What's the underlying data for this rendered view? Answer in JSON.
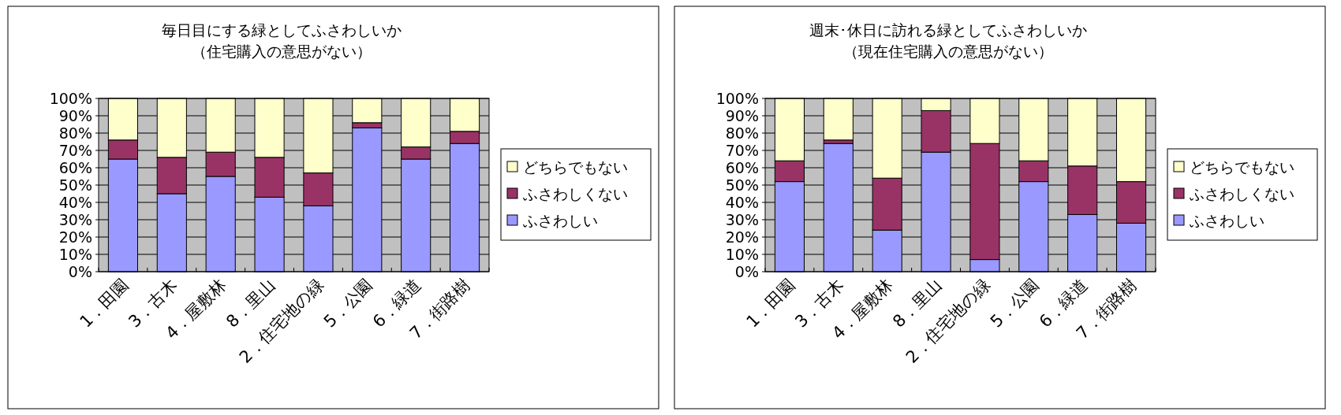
{
  "chart_data": [
    {
      "type": "bar",
      "title": "毎日目にする緑としてふさわしいか",
      "subtitle": "（住宅購入の意思がない）",
      "stacked": true,
      "legend": "right",
      "grid": "y",
      "categories": [
        "1．田園",
        "3．古木",
        "4．屋敷林",
        "8．里山",
        "2．住宅地の緑",
        "5．公園",
        "6．緑道",
        "7．街路樹"
      ],
      "ylim": [
        0,
        100
      ],
      "yticks": [
        {
          "value": 0,
          "label": "0%"
        },
        {
          "value": 10,
          "label": "10%"
        },
        {
          "value": 20,
          "label": "20%"
        },
        {
          "value": 30,
          "label": "30%"
        },
        {
          "value": 40,
          "label": "40%"
        },
        {
          "value": 50,
          "label": "50%"
        },
        {
          "value": 60,
          "label": "60%"
        },
        {
          "value": 70,
          "label": "70%"
        },
        {
          "value": 80,
          "label": "80%"
        },
        {
          "value": 90,
          "label": "90%"
        },
        {
          "value": 100,
          "label": "100%"
        }
      ],
      "series": [
        {
          "name": "ふさわしい",
          "color": "#9999ff",
          "values": [
            65,
            45,
            55,
            43,
            38,
            83,
            65,
            74
          ]
        },
        {
          "name": "ふさわしくない",
          "color": "#993366",
          "values": [
            11,
            21,
            14,
            23,
            19,
            3,
            7,
            7
          ]
        },
        {
          "name": "どちらでもない",
          "color": "#ffffcc",
          "values": [
            24,
            34,
            31,
            34,
            43,
            14,
            28,
            19
          ]
        }
      ]
    },
    {
      "type": "bar",
      "title": "週末･休日に訪れる緑としてふさわしいか",
      "subtitle": "（現在住宅購入の意思がない）",
      "stacked": true,
      "legend": "right",
      "grid": "y",
      "categories": [
        "1．田園",
        "3．古木",
        "4．屋敷林",
        "8．里山",
        "2．住宅地の緑",
        "5．公園",
        "6．緑道",
        "7．街路樹"
      ],
      "ylim": [
        0,
        100
      ],
      "yticks": [
        {
          "value": 0,
          "label": "0%"
        },
        {
          "value": 10,
          "label": "10%"
        },
        {
          "value": 20,
          "label": "20%"
        },
        {
          "value": 30,
          "label": "30%"
        },
        {
          "value": 40,
          "label": "40%"
        },
        {
          "value": 50,
          "label": "50%"
        },
        {
          "value": 60,
          "label": "60%"
        },
        {
          "value": 70,
          "label": "70%"
        },
        {
          "value": 80,
          "label": "80%"
        },
        {
          "value": 90,
          "label": "90%"
        },
        {
          "value": 100,
          "label": "100%"
        }
      ],
      "series": [
        {
          "name": "ふさわしい",
          "color": "#9999ff",
          "values": [
            52,
            74,
            24,
            69,
            7,
            52,
            33,
            28
          ]
        },
        {
          "name": "ふさわしくない",
          "color": "#993366",
          "values": [
            12,
            2,
            30,
            24,
            67,
            12,
            28,
            24
          ]
        },
        {
          "name": "どちらでもない",
          "color": "#ffffcc",
          "values": [
            36,
            24,
            46,
            7,
            26,
            36,
            39,
            48
          ]
        }
      ]
    }
  ]
}
